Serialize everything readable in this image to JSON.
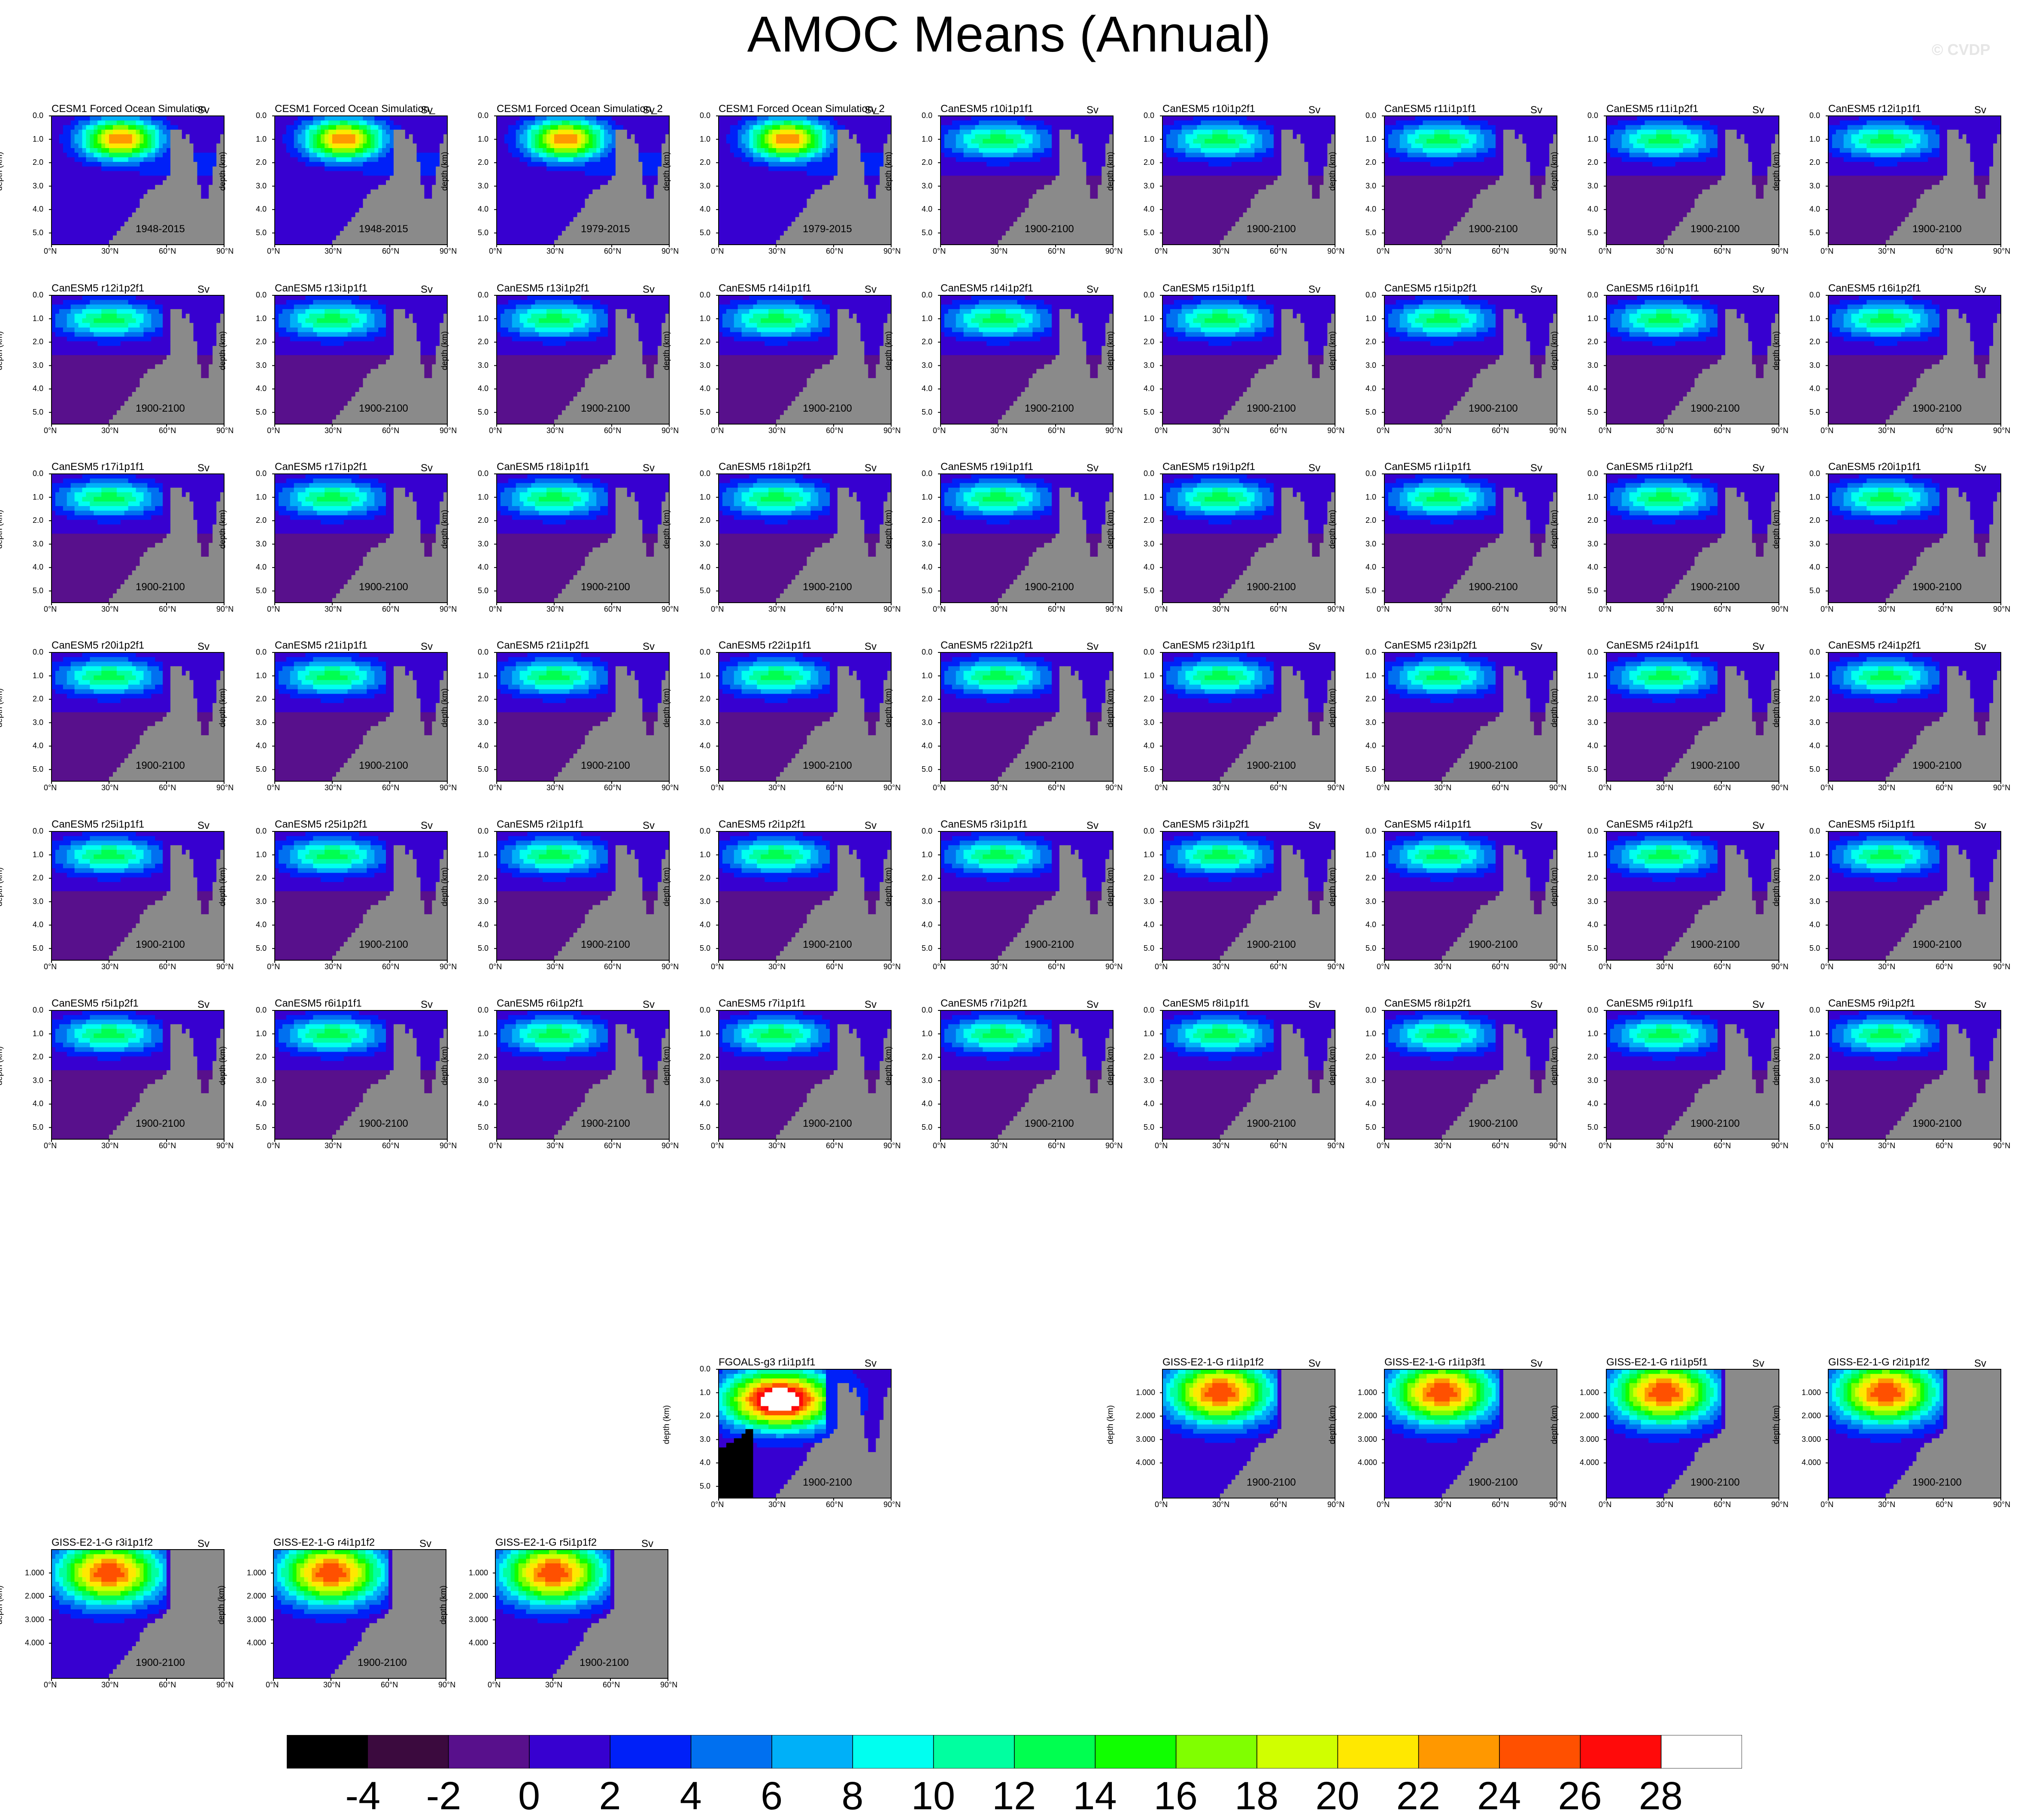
{
  "title": "AMOC Means (Annual)",
  "copyright": "© CVDP",
  "ylabel": "depth (km)",
  "units": "Sv",
  "xticks": [
    "0°N",
    "30°N",
    "60°N",
    "90°N"
  ],
  "yticks_standard": [
    "0.0",
    "1.0",
    "2.0",
    "3.0",
    "4.0",
    "5.0"
  ],
  "yticks_giss": [
    "1.000",
    "2.000",
    "3.000",
    "4.000"
  ],
  "colorbar": {
    "labels": [
      "-4",
      "-2",
      "0",
      "2",
      "4",
      "6",
      "8",
      "10",
      "12",
      "14",
      "16",
      "18",
      "20",
      "22",
      "24",
      "26",
      "28"
    ],
    "colors": [
      "#000000",
      "#3b0a3e",
      "#58108c",
      "#3700d0",
      "#0020f8",
      "#0070f0",
      "#00b0f8",
      "#00fff0",
      "#00ffa0",
      "#00ff50",
      "#10ff00",
      "#80ff00",
      "#d0ff00",
      "#ffe800",
      "#ff9800",
      "#ff5000",
      "#ff0a0a",
      "#ffffff"
    ]
  },
  "panels": [
    {
      "title": "CESM1 Forced Ocean Simulation",
      "years": "1948-2015",
      "type": "cesm"
    },
    {
      "title": "CESM1 Forced Ocean Simulation_",
      "years": "1948-2015",
      "type": "cesm"
    },
    {
      "title": "CESM1 Forced Ocean Simulation_2",
      "years": "1979-2015",
      "type": "cesm"
    },
    {
      "title": "CESM1 Forced Ocean Simulation_2",
      "years": "1979-2015",
      "type": "cesm"
    },
    {
      "title": "CanESM5 r10i1p1f1",
      "years": "1900-2100",
      "type": "can"
    },
    {
      "title": "CanESM5 r10i1p2f1",
      "years": "1900-2100",
      "type": "can"
    },
    {
      "title": "CanESM5 r11i1p1f1",
      "years": "1900-2100",
      "type": "can"
    },
    {
      "title": "CanESM5 r11i1p2f1",
      "years": "1900-2100",
      "type": "can"
    },
    {
      "title": "CanESM5 r12i1p1f1",
      "years": "1900-2100",
      "type": "can"
    },
    {
      "title": "CanESM5 r12i1p2f1",
      "years": "1900-2100",
      "type": "can"
    },
    {
      "title": "CanESM5 r13i1p1f1",
      "years": "1900-2100",
      "type": "can"
    },
    {
      "title": "CanESM5 r13i1p2f1",
      "years": "1900-2100",
      "type": "can"
    },
    {
      "title": "CanESM5 r14i1p1f1",
      "years": "1900-2100",
      "type": "can"
    },
    {
      "title": "CanESM5 r14i1p2f1",
      "years": "1900-2100",
      "type": "can"
    },
    {
      "title": "CanESM5 r15i1p1f1",
      "years": "1900-2100",
      "type": "can"
    },
    {
      "title": "CanESM5 r15i1p2f1",
      "years": "1900-2100",
      "type": "can"
    },
    {
      "title": "CanESM5 r16i1p1f1",
      "years": "1900-2100",
      "type": "can"
    },
    {
      "title": "CanESM5 r16i1p2f1",
      "years": "1900-2100",
      "type": "can"
    },
    {
      "title": "CanESM5 r17i1p1f1",
      "years": "1900-2100",
      "type": "can"
    },
    {
      "title": "CanESM5 r17i1p2f1",
      "years": "1900-2100",
      "type": "can"
    },
    {
      "title": "CanESM5 r18i1p1f1",
      "years": "1900-2100",
      "type": "can"
    },
    {
      "title": "CanESM5 r18i1p2f1",
      "years": "1900-2100",
      "type": "can"
    },
    {
      "title": "CanESM5 r19i1p1f1",
      "years": "1900-2100",
      "type": "can"
    },
    {
      "title": "CanESM5 r19i1p2f1",
      "years": "1900-2100",
      "type": "can"
    },
    {
      "title": "CanESM5 r1i1p1f1",
      "years": "1900-2100",
      "type": "can"
    },
    {
      "title": "CanESM5 r1i1p2f1",
      "years": "1900-2100",
      "type": "can"
    },
    {
      "title": "CanESM5 r20i1p1f1",
      "years": "1900-2100",
      "type": "can"
    },
    {
      "title": "CanESM5 r20i1p2f1",
      "years": "1900-2100",
      "type": "can"
    },
    {
      "title": "CanESM5 r21i1p1f1",
      "years": "1900-2100",
      "type": "can"
    },
    {
      "title": "CanESM5 r21i1p2f1",
      "years": "1900-2100",
      "type": "can"
    },
    {
      "title": "CanESM5 r22i1p1f1",
      "years": "1900-2100",
      "type": "can"
    },
    {
      "title": "CanESM5 r22i1p2f1",
      "years": "1900-2100",
      "type": "can"
    },
    {
      "title": "CanESM5 r23i1p1f1",
      "years": "1900-2100",
      "type": "can"
    },
    {
      "title": "CanESM5 r23i1p2f1",
      "years": "1900-2100",
      "type": "can"
    },
    {
      "title": "CanESM5 r24i1p1f1",
      "years": "1900-2100",
      "type": "can"
    },
    {
      "title": "CanESM5 r24i1p2f1",
      "years": "1900-2100",
      "type": "can"
    },
    {
      "title": "CanESM5 r25i1p1f1",
      "years": "1900-2100",
      "type": "can"
    },
    {
      "title": "CanESM5 r25i1p2f1",
      "years": "1900-2100",
      "type": "can"
    },
    {
      "title": "CanESM5 r2i1p1f1",
      "years": "1900-2100",
      "type": "can"
    },
    {
      "title": "CanESM5 r2i1p2f1",
      "years": "1900-2100",
      "type": "can"
    },
    {
      "title": "CanESM5 r3i1p1f1",
      "years": "1900-2100",
      "type": "can"
    },
    {
      "title": "CanESM5 r3i1p2f1",
      "years": "1900-2100",
      "type": "can"
    },
    {
      "title": "CanESM5 r4i1p1f1",
      "years": "1900-2100",
      "type": "can"
    },
    {
      "title": "CanESM5 r4i1p2f1",
      "years": "1900-2100",
      "type": "can"
    },
    {
      "title": "CanESM5 r5i1p1f1",
      "years": "1900-2100",
      "type": "can"
    },
    {
      "title": "CanESM5 r5i1p2f1",
      "years": "1900-2100",
      "type": "can"
    },
    {
      "title": "CanESM5 r6i1p1f1",
      "years": "1900-2100",
      "type": "can"
    },
    {
      "title": "CanESM5 r6i1p2f1",
      "years": "1900-2100",
      "type": "can"
    },
    {
      "title": "CanESM5 r7i1p1f1",
      "years": "1900-2100",
      "type": "can"
    },
    {
      "title": "CanESM5 r7i1p2f1",
      "years": "1900-2100",
      "type": "can"
    },
    {
      "title": "CanESM5 r8i1p1f1",
      "years": "1900-2100",
      "type": "can"
    },
    {
      "title": "CanESM5 r8i1p2f1",
      "years": "1900-2100",
      "type": "can"
    },
    {
      "title": "CanESM5 r9i1p1f1",
      "years": "1900-2100",
      "type": "can"
    },
    {
      "title": "CanESM5 r9i1p2f1",
      "years": "1900-2100",
      "type": "can"
    },
    {
      "title": "FGOALS-g3 r1i1p1f1",
      "years": "1900-2100",
      "type": "fgoals"
    },
    {
      "title": "GISS-E2-1-G r1i1p1f2",
      "years": "1900-2100",
      "type": "giss"
    },
    {
      "title": "GISS-E2-1-G r1i1p3f1",
      "years": "1900-2100",
      "type": "giss"
    },
    {
      "title": "GISS-E2-1-G r1i1p5f1",
      "years": "1900-2100",
      "type": "giss"
    },
    {
      "title": "GISS-E2-1-G r2i1p1f2",
      "years": "1900-2100",
      "type": "giss"
    },
    {
      "title": "GISS-E2-1-G r3i1p1f2",
      "years": "1900-2100",
      "type": "giss"
    },
    {
      "title": "GISS-E2-1-G r4i1p1f2",
      "years": "1900-2100",
      "type": "giss"
    },
    {
      "title": "GISS-E2-1-G r5i1p1f2",
      "years": "1900-2100",
      "type": "giss"
    }
  ],
  "chart_data": {
    "type": "heatmap",
    "title": "AMOC Means (Annual)",
    "xlabel": "",
    "ylabel": "depth (km)",
    "units": "Sv",
    "x_range": [
      0,
      90
    ],
    "y_range_km": [
      0,
      5.5
    ],
    "colorbar_levels": [
      -4,
      -2,
      0,
      2,
      4,
      6,
      8,
      10,
      12,
      14,
      16,
      18,
      20,
      22,
      24,
      26,
      28
    ],
    "panel_count": 62,
    "approx_max_Sv": {
      "CESM1": 26,
      "CanESM5": 13,
      "FGOALS-g3": 28,
      "GISS-E2-1-G": 26
    }
  }
}
